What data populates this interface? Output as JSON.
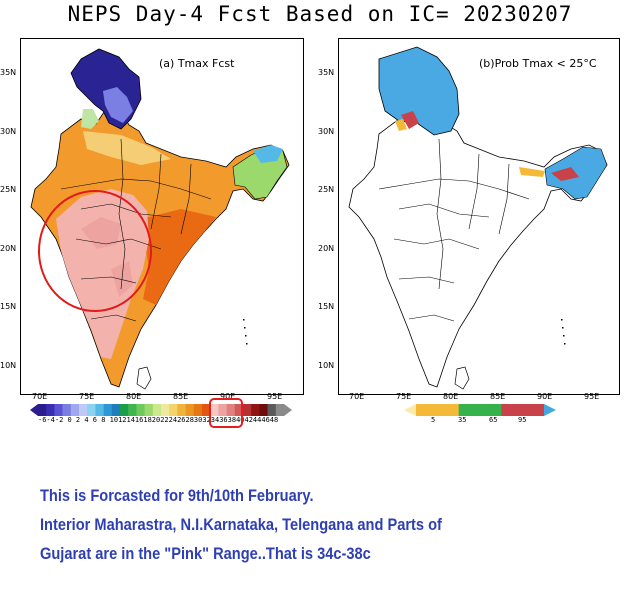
{
  "title": "NEPS Day-4 Fcst Based on IC= 20230207",
  "panel_a": {
    "label": "(a) Tmax Fcst"
  },
  "panel_b": {
    "label": "(b)Prob Tmax < 25°C"
  },
  "lat_labels": [
    "35N",
    "30N",
    "25N",
    "20N",
    "15N",
    "10N"
  ],
  "lon_labels": [
    "70E",
    "75E",
    "80E",
    "85E",
    "90E",
    "95E"
  ],
  "colorbar_a": {
    "labels": "-6-4-2 0 2 4 6 8 1012141618202224262830323436384042444648",
    "colors": [
      "#2b1d8c",
      "#3a2fb3",
      "#5a53d4",
      "#7b7fe3",
      "#9fa7ee",
      "#bfc9f5",
      "#8ad3f0",
      "#55b9e8",
      "#2e98d6",
      "#1e7cbf",
      "#1b9e4a",
      "#3fb64d",
      "#6cc95a",
      "#9bd96c",
      "#c9e98a",
      "#efe9a0",
      "#f3d36a",
      "#f0b43a",
      "#ec9622",
      "#e77615",
      "#e2570f",
      "#f6c8c3",
      "#eda3a0",
      "#e0817f",
      "#cf5a59",
      "#b63232",
      "#8f1414",
      "#6f0c0c",
      "#5a5a5a",
      "#8a8a8a"
    ],
    "highlight_color": "#e32020"
  },
  "colorbar_b": {
    "labels": [
      "5",
      "35",
      "65",
      "95"
    ],
    "colors": [
      "#fde9a8",
      "#f5b939",
      "#35b34a",
      "#c9424a",
      "#43a7e2"
    ]
  },
  "colors": {
    "deep_blue": "#2a2393",
    "orange": "#f39a2d",
    "dark_orange": "#ea6a14",
    "pink": "#f4b2ad",
    "light_yellow": "#f4cd74",
    "sky_blue": "#4aa8e3",
    "green": "#37a94a",
    "red_circle": "#e11b1b"
  },
  "annotation": {
    "line1": "This is Forcasted for 9th/10th February.",
    "line2": "Interior Maharastra, N.I.Karnataka, Telengana and Parts of",
    "line3": "Gujarat are in the \"Pink\" Range..That is 34c-38c"
  }
}
